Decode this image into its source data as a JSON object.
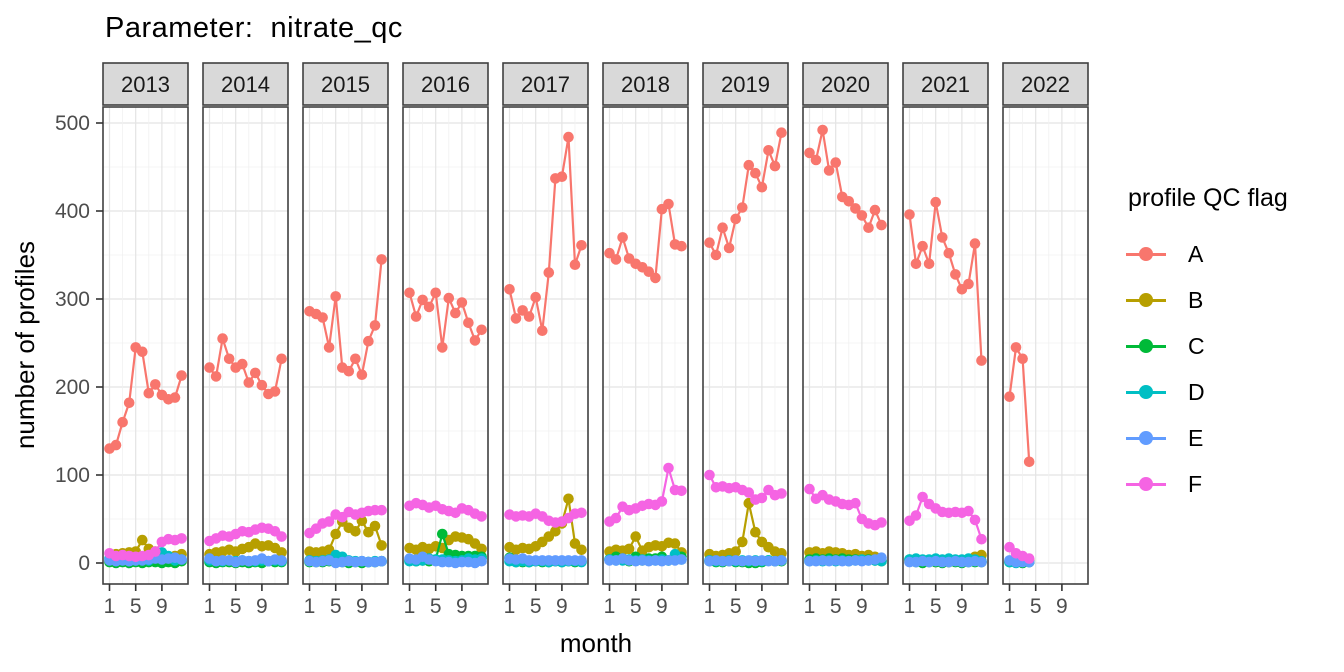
{
  "chart_data": {
    "type": "line",
    "title": "Parameter:  nitrate_qc",
    "xlabel": "month",
    "ylabel": "number of profiles",
    "legend_title": "profile QC flag",
    "legend_position": "right",
    "grid": "on",
    "ylim": [
      0,
      500
    ],
    "yticks": [
      0,
      100,
      200,
      300,
      400,
      500
    ],
    "xticks": [
      1,
      5,
      9
    ],
    "x_minor_gridlines": [
      3,
      7,
      11
    ],
    "facets": [
      "2013",
      "2014",
      "2015",
      "2016",
      "2017",
      "2018",
      "2019",
      "2020",
      "2021",
      "2022"
    ],
    "facet_strip_fill": "#d9d9d9",
    "panel_border_color": "#404040",
    "axis_text_color": "#4d4d4d",
    "series": [
      {
        "name": "A",
        "color": "#F8766D",
        "values": {
          "2013": [
            130,
            134,
            160,
            182,
            245,
            240,
            193,
            203,
            191,
            186,
            188,
            213
          ],
          "2014": [
            222,
            212,
            255,
            232,
            222,
            226,
            205,
            216,
            202,
            192,
            195,
            232
          ],
          "2015": [
            286,
            283,
            279,
            245,
            303,
            222,
            218,
            232,
            214,
            252,
            270,
            345
          ],
          "2016": [
            307,
            280,
            299,
            291,
            307,
            245,
            301,
            284,
            296,
            273,
            253,
            265
          ],
          "2017": [
            311,
            278,
            287,
            280,
            302,
            264,
            330,
            437,
            439,
            484,
            339,
            361
          ],
          "2018": [
            352,
            345,
            370,
            346,
            340,
            336,
            331,
            324,
            402,
            408,
            362,
            360
          ],
          "2019": [
            364,
            350,
            381,
            358,
            391,
            404,
            452,
            443,
            427,
            469,
            451,
            489
          ],
          "2020": [
            466,
            458,
            492,
            446,
            455,
            416,
            411,
            403,
            395,
            381,
            401,
            384
          ],
          "2021": [
            396,
            340,
            360,
            340,
            410,
            370,
            352,
            328,
            311,
            317,
            363,
            230
          ],
          "2022": [
            189,
            245,
            232,
            115
          ]
        }
      },
      {
        "name": "B",
        "color": "#B79F00",
        "values": {
          "2013": [
            2,
            10,
            11,
            12,
            13,
            26,
            16,
            13,
            10,
            5,
            8,
            10
          ],
          "2014": [
            10,
            12,
            13,
            15,
            13,
            16,
            18,
            22,
            19,
            20,
            17,
            12
          ],
          "2015": [
            13,
            12,
            13,
            15,
            33,
            47,
            40,
            36,
            48,
            35,
            42,
            20
          ],
          "2016": [
            17,
            15,
            18,
            16,
            19,
            17,
            26,
            30,
            29,
            27,
            22,
            16
          ],
          "2017": [
            18,
            15,
            17,
            16,
            19,
            24,
            30,
            36,
            45,
            73,
            22,
            15
          ],
          "2018": [
            13,
            15,
            14,
            16,
            30,
            14,
            18,
            20,
            19,
            23,
            22,
            12
          ],
          "2019": [
            10,
            8,
            9,
            11,
            13,
            24,
            68,
            35,
            24,
            18,
            13,
            11
          ],
          "2020": [
            12,
            13,
            11,
            13,
            12,
            11,
            9,
            10,
            8,
            9,
            7,
            2
          ],
          "2021": [
            2,
            2,
            1,
            2,
            1,
            2,
            1,
            2,
            1,
            2,
            7,
            9
          ],
          "2022": [
            2,
            2,
            1,
            3
          ]
        }
      },
      {
        "name": "C",
        "color": "#00BA38",
        "values": {
          "2013": [
            1,
            0,
            1,
            0,
            1,
            0,
            1,
            1,
            0,
            1,
            0,
            2
          ],
          "2014": [
            1,
            0,
            1,
            1,
            0,
            1,
            0,
            1,
            0,
            2,
            1,
            1
          ],
          "2015": [
            1,
            1,
            1,
            2,
            2,
            1,
            0,
            1,
            0,
            1,
            1,
            2
          ],
          "2016": [
            3,
            2,
            3,
            2,
            4,
            33,
            10,
            9,
            8,
            8,
            8,
            7
          ],
          "2017": [
            6,
            1,
            1,
            1,
            2,
            1,
            1,
            2,
            1,
            2,
            1,
            2
          ],
          "2018": [
            4,
            7,
            5,
            2,
            7,
            3,
            5,
            5,
            7,
            3,
            5,
            7
          ],
          "2019": [
            2,
            1,
            1,
            2,
            1,
            1,
            0,
            0,
            1,
            3,
            2,
            2
          ],
          "2020": [
            4,
            5,
            4,
            5,
            4,
            5,
            4,
            4,
            3,
            4,
            3,
            3
          ],
          "2021": [
            4,
            1,
            0,
            1,
            1,
            0,
            1,
            1,
            0,
            1,
            1,
            1
          ],
          "2022": [
            1,
            1,
            0,
            1
          ]
        }
      },
      {
        "name": "D",
        "color": "#00BFC4",
        "values": {
          "2013": [
            5,
            4,
            4,
            3,
            3,
            4,
            3,
            7,
            12,
            8,
            3,
            4
          ],
          "2014": [
            3,
            2,
            2,
            3,
            2,
            3,
            2,
            2,
            3,
            2,
            3,
            2
          ],
          "2015": [
            3,
            2,
            3,
            4,
            9,
            7,
            3,
            2,
            2,
            1,
            2,
            2
          ],
          "2016": [
            2,
            2,
            3,
            5,
            4,
            4,
            3,
            2,
            3,
            5,
            4,
            5
          ],
          "2017": [
            2,
            1,
            2,
            1,
            2,
            2,
            1,
            2,
            1,
            2,
            2,
            1
          ],
          "2018": [
            4,
            3,
            3,
            4,
            3,
            4,
            3,
            3,
            4,
            3,
            10,
            4
          ],
          "2019": [
            3,
            2,
            2,
            3,
            2,
            3,
            2,
            3,
            2,
            3,
            2,
            3
          ],
          "2020": [
            2,
            3,
            2,
            3,
            2,
            3,
            2,
            3,
            4,
            3,
            3,
            2
          ],
          "2021": [
            4,
            5,
            4,
            4,
            5,
            4,
            5,
            4,
            4,
            5,
            4,
            2
          ],
          "2022": [
            1,
            0,
            1,
            1
          ]
        }
      },
      {
        "name": "E",
        "color": "#619CFF",
        "values": {
          "2013": [
            3,
            2,
            3,
            2,
            3,
            3,
            4,
            5,
            4,
            5,
            6,
            4
          ],
          "2014": [
            5,
            2,
            3,
            3,
            1,
            3,
            2,
            3,
            5,
            2,
            4,
            3
          ],
          "2015": [
            2,
            1,
            2,
            3,
            0,
            1,
            2,
            1,
            2,
            1,
            1,
            2
          ],
          "2016": [
            5,
            4,
            7,
            4,
            2,
            1,
            1,
            0,
            1,
            1,
            0,
            2
          ],
          "2017": [
            5,
            4,
            5,
            3,
            3,
            3,
            3,
            3,
            3,
            3,
            3,
            3
          ],
          "2018": [
            3,
            3,
            5,
            3,
            2,
            3,
            2,
            3,
            2,
            3,
            3,
            4
          ],
          "2019": [
            2,
            3,
            2,
            2,
            3,
            2,
            3,
            2,
            3,
            2,
            2,
            3
          ],
          "2020": [
            2,
            2,
            3,
            2,
            3,
            2,
            2,
            3,
            2,
            3,
            4,
            6
          ],
          "2021": [
            1,
            1,
            2,
            1,
            2,
            1,
            1,
            2,
            1,
            1,
            2,
            1
          ],
          "2022": [
            3,
            1,
            1,
            1
          ]
        }
      },
      {
        "name": "F",
        "color": "#F564E3",
        "values": {
          "2013": [
            11,
            8,
            9,
            8,
            7,
            8,
            9,
            13,
            24,
            27,
            26,
            28
          ],
          "2014": [
            25,
            28,
            31,
            30,
            33,
            36,
            35,
            38,
            40,
            39,
            36,
            30
          ],
          "2015": [
            34,
            39,
            45,
            47,
            55,
            52,
            58,
            55,
            57,
            59,
            60,
            60
          ],
          "2016": [
            65,
            68,
            66,
            63,
            65,
            61,
            59,
            57,
            62,
            60,
            56,
            53
          ],
          "2017": [
            55,
            53,
            54,
            53,
            56,
            53,
            48,
            46,
            47,
            51,
            56,
            57
          ],
          "2018": [
            47,
            51,
            64,
            60,
            62,
            65,
            67,
            66,
            70,
            108,
            83,
            82
          ],
          "2019": [
            100,
            86,
            87,
            85,
            86,
            83,
            80,
            72,
            74,
            83,
            77,
            79
          ],
          "2020": [
            84,
            73,
            77,
            72,
            70,
            67,
            66,
            68,
            50,
            45,
            43,
            46
          ],
          "2021": [
            48,
            54,
            75,
            67,
            62,
            58,
            57,
            58,
            57,
            59,
            49,
            27
          ],
          "2022": [
            18,
            11,
            8,
            5
          ]
        }
      }
    ]
  }
}
